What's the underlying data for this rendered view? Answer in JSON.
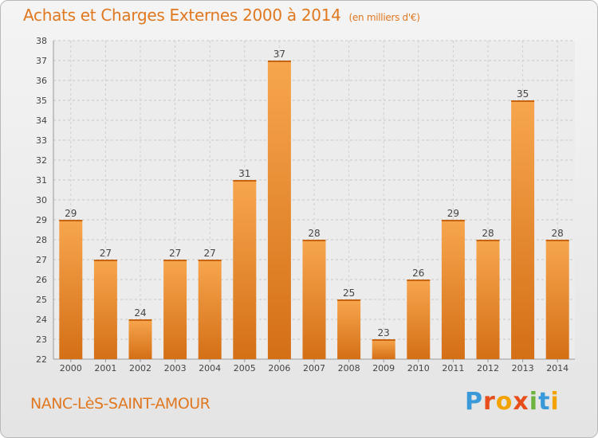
{
  "header": {
    "title": "Achats et Charges Externes 2000 à 2014",
    "unit": "(en milliers d'€)"
  },
  "footer": {
    "commune": "NANC-LèS-SAINT-AMOUR",
    "logo": "Proxiti"
  },
  "colors": {
    "accent": "#e07820",
    "bar_light": "#f7a64e",
    "bar_dark": "#d46f16"
  },
  "chart_data": {
    "type": "bar",
    "categories": [
      "2000",
      "2001",
      "2002",
      "2003",
      "2004",
      "2005",
      "2006",
      "2007",
      "2008",
      "2009",
      "2010",
      "2011",
      "2012",
      "2013",
      "2014"
    ],
    "values": [
      29,
      27,
      24,
      27,
      27,
      31,
      37,
      28,
      25,
      23,
      26,
      29,
      28,
      35,
      28
    ],
    "ylim": [
      22,
      38
    ],
    "yticks": [
      22,
      23,
      24,
      25,
      26,
      27,
      28,
      29,
      30,
      31,
      32,
      33,
      34,
      35,
      36,
      37,
      38
    ],
    "grid": true
  }
}
